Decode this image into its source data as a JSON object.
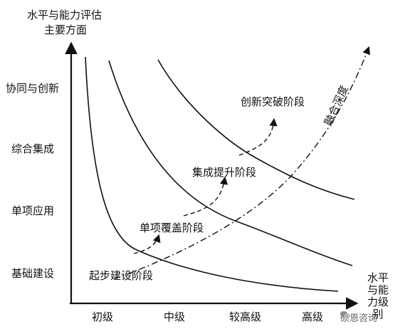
{
  "axes": {
    "y_title_line1": "水平与能力评估",
    "y_title_line2": "主要方面",
    "x_title_lines": [
      "水平",
      "与能",
      "力级",
      "别"
    ]
  },
  "y_categories": [
    "协同与创新",
    "综合集成",
    "单项应用",
    "基础建设"
  ],
  "x_categories": [
    "初级",
    "中级",
    "较高级",
    "高级"
  ],
  "stages": [
    "起步建设阶段",
    "单项覆盖阶段",
    "集成提升阶段",
    "创新突破阶段"
  ],
  "diagonal_label": "融合深度",
  "watermark": "硕恩咨询",
  "colors": {
    "line": "#111111",
    "background": "#ffffff"
  }
}
